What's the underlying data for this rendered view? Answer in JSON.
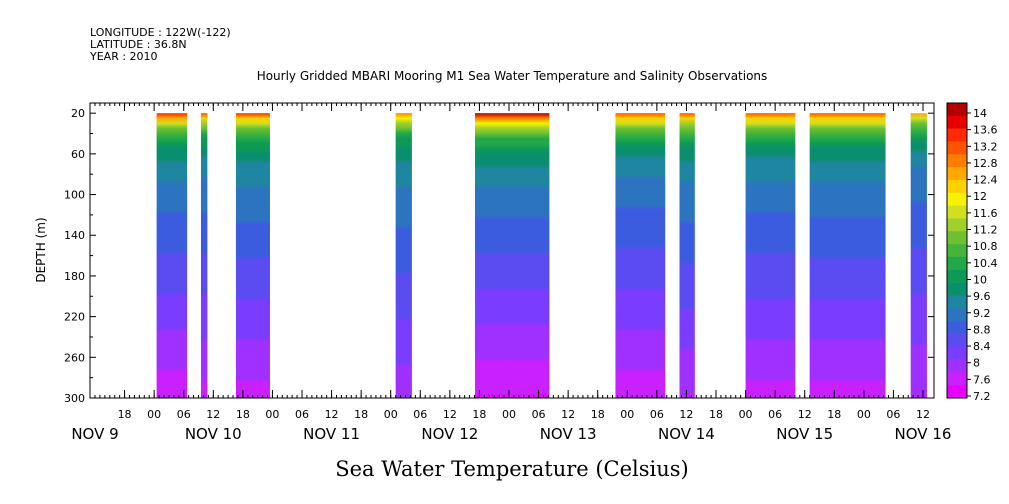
{
  "header": {
    "longitude": "LONGITUDE : 122W(-122)",
    "latitude": "LATITUDE : 36.8N",
    "year": "YEAR : 2010"
  },
  "chart_data": {
    "type": "heatmap",
    "title": "Hourly Gridded MBARI Mooring M1 Sea Water Temperature and Salinity Observations",
    "xlabel": "Sea Water Temperature (Celsius)",
    "ylabel": "DEPTH (m)",
    "x_unit": "hours since Nov 9 2010 12:00",
    "xlim": [
      0,
      168
    ],
    "ylim": [
      10,
      300
    ],
    "y_inverted": true,
    "y_ticks": [
      20,
      60,
      100,
      140,
      180,
      220,
      260,
      300
    ],
    "x_hour_ticks": [
      {
        "h": 6,
        "label": "18"
      },
      {
        "h": 12,
        "label": "00"
      },
      {
        "h": 18,
        "label": "06"
      },
      {
        "h": 24,
        "label": "12"
      },
      {
        "h": 30,
        "label": "18"
      },
      {
        "h": 36,
        "label": "00"
      },
      {
        "h": 42,
        "label": "06"
      },
      {
        "h": 48,
        "label": "12"
      },
      {
        "h": 54,
        "label": "18"
      },
      {
        "h": 60,
        "label": "00"
      },
      {
        "h": 66,
        "label": "06"
      },
      {
        "h": 72,
        "label": "12"
      },
      {
        "h": 78,
        "label": "18"
      },
      {
        "h": 84,
        "label": "00"
      },
      {
        "h": 90,
        "label": "06"
      },
      {
        "h": 96,
        "label": "12"
      },
      {
        "h": 102,
        "label": "18"
      },
      {
        "h": 108,
        "label": "00"
      },
      {
        "h": 114,
        "label": "06"
      },
      {
        "h": 120,
        "label": "12"
      },
      {
        "h": 126,
        "label": "18"
      },
      {
        "h": 132,
        "label": "00"
      },
      {
        "h": 138,
        "label": "06"
      },
      {
        "h": 144,
        "label": "12"
      },
      {
        "h": 150,
        "label": "18"
      },
      {
        "h": 156,
        "label": "00"
      },
      {
        "h": 162,
        "label": "06"
      },
      {
        "h": 168,
        "label": "12"
      }
    ],
    "x_day_labels": [
      {
        "h": 0,
        "label": "NOV  9"
      },
      {
        "h": 24,
        "label": "NOV 10"
      },
      {
        "h": 48,
        "label": "NOV 11"
      },
      {
        "h": 72,
        "label": "NOV 12"
      },
      {
        "h": 96,
        "label": "NOV 13"
      },
      {
        "h": 120,
        "label": "NOV 14"
      },
      {
        "h": 144,
        "label": "NOV 15"
      },
      {
        "h": 168,
        "label": "NOV 16"
      }
    ],
    "data_segments": [
      {
        "start": 12.5,
        "end": 18.7,
        "surface": 13.4,
        "bottom": 7.4
      },
      {
        "start": 21.5,
        "end": 22.8,
        "surface": 13.0,
        "bottom": 7.5
      },
      {
        "start": 28.6,
        "end": 35.5,
        "surface": 13.3,
        "bottom": 7.5
      },
      {
        "start": 61.0,
        "end": 64.3,
        "surface": 12.8,
        "bottom": 7.7
      },
      {
        "start": 77.1,
        "end": 92.2,
        "surface": 13.9,
        "bottom": 7.3
      },
      {
        "start": 105.6,
        "end": 115.7,
        "surface": 13.2,
        "bottom": 7.4
      },
      {
        "start": 118.6,
        "end": 121.7,
        "surface": 13.0,
        "bottom": 7.6
      },
      {
        "start": 132.0,
        "end": 142.1,
        "surface": 13.1,
        "bottom": 7.5
      },
      {
        "start": 145.0,
        "end": 160.4,
        "surface": 13.2,
        "bottom": 7.5
      },
      {
        "start": 165.5,
        "end": 168.8,
        "surface": 12.4,
        "bottom": 7.6
      }
    ],
    "colorbar": {
      "levels": [
        "14",
        "13.6",
        "13.2",
        "12.8",
        "12.4",
        "12",
        "11.6",
        "11.2",
        "10.8",
        "10.4",
        "10",
        "9.6",
        "9.2",
        "8.8",
        "8.4",
        "8",
        "7.6",
        "7.2"
      ],
      "min": 7.0,
      "max": 14.2,
      "colors": [
        "#e800ff",
        "#c820ff",
        "#a030ff",
        "#7a3cff",
        "#5a4cf0",
        "#3c5ce0",
        "#2c74c0",
        "#1e86a0",
        "#0a8f6e",
        "#0e9a55",
        "#22a84a",
        "#44b43a",
        "#6ec030",
        "#a0d02a",
        "#d0e020",
        "#f4f400",
        "#ffd000",
        "#ffa800",
        "#ff7e00",
        "#ff5400",
        "#ff2a00",
        "#e80000",
        "#b40000"
      ]
    }
  }
}
